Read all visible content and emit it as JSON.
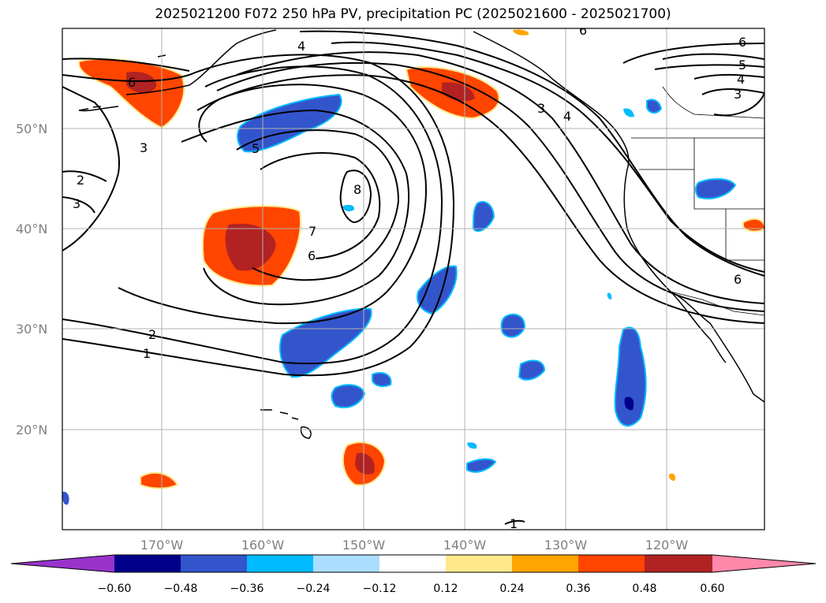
{
  "title": "2025021200 F072 250 hPa PV, precipitation PC (2025021600 - 2025021700)",
  "lat_labels": [
    "50°N",
    "40°N",
    "30°N",
    "20°N"
  ],
  "lon_labels": [
    "170°W",
    "160°W",
    "150°W",
    "140°W",
    "130°W",
    "120°W"
  ],
  "contour_labels": [
    "1",
    "2",
    "3",
    "2",
    "3",
    "4",
    "5",
    "6",
    "7",
    "6",
    "8",
    "3",
    "4",
    "6",
    "5",
    "4",
    "3",
    "6",
    "1",
    "6"
  ],
  "colorbar": {
    "ticks": [
      "−0.60",
      "−0.48",
      "−0.36",
      "−0.24",
      "−0.12",
      "0.12",
      "0.24",
      "0.36",
      "0.48",
      "0.60"
    ],
    "colors": [
      "#9933cc",
      "#00008b",
      "#3355cc",
      "#00bbff",
      "#aaddff",
      "#ffffff",
      "#ffe88a",
      "#ffa500",
      "#ff4500",
      "#b22222",
      "#ff88aa"
    ]
  },
  "chart_data": {
    "type": "map",
    "title": "2025021200 F072 250 hPa PV, precipitation PC (2025021600 - 2025021700)",
    "extent": {
      "lon": [
        -180,
        -110
      ],
      "lat": [
        10,
        60
      ]
    },
    "gridlines": true,
    "contour_field": "250 hPa PV",
    "contour_levels": [
      1,
      2,
      3,
      4,
      5,
      6,
      7,
      8
    ],
    "shaded_field": "precipitation PC",
    "shading_levels": [
      -0.6,
      -0.48,
      -0.36,
      -0.24,
      -0.12,
      0.12,
      0.24,
      0.36,
      0.48,
      0.6
    ],
    "shading_colors": [
      "#9933cc",
      "#00008b",
      "#3355cc",
      "#00bbff",
      "#aaddff",
      "#ffffff",
      "#ffe88a",
      "#ffa500",
      "#ff4500",
      "#b22222",
      "#ff88aa"
    ]
  }
}
